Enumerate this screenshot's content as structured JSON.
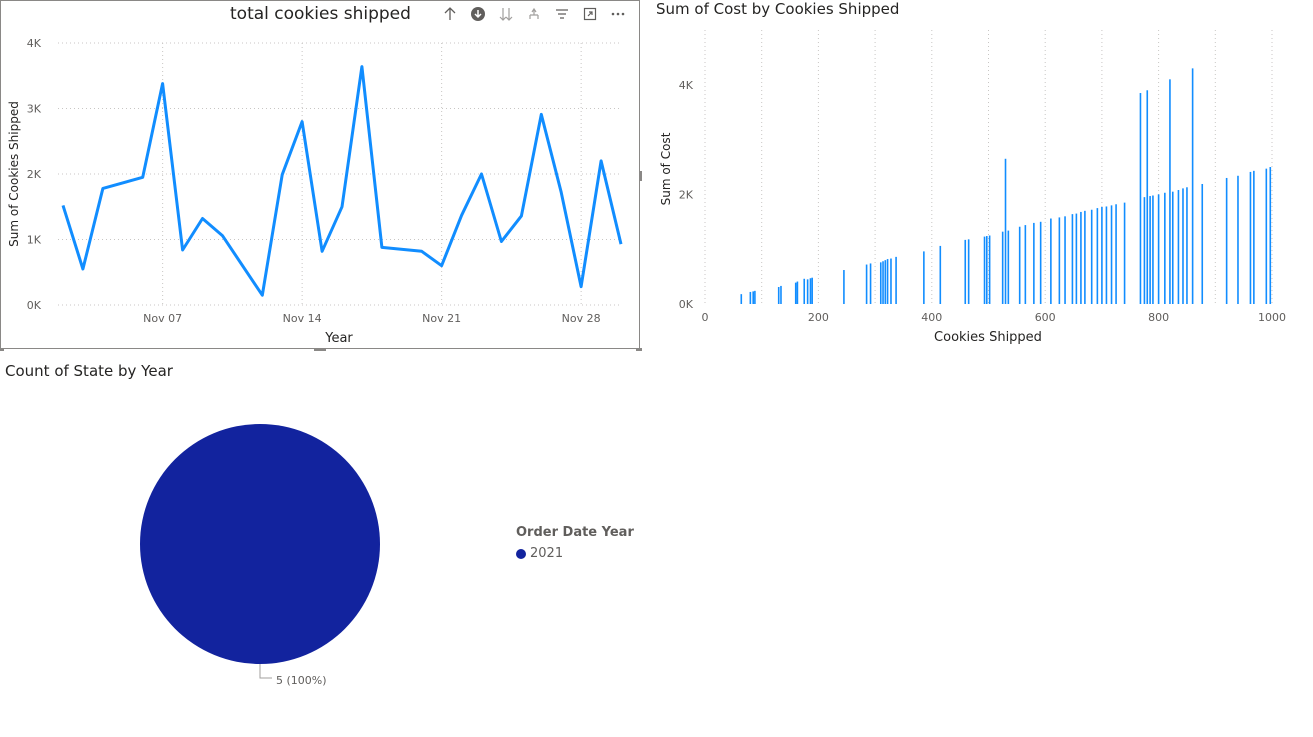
{
  "colors": {
    "line": "#118dff",
    "bar": "#118dff",
    "pie": "#12239e",
    "grid": "#c8c6c4",
    "axis_text": "#605e5c"
  },
  "header_icons": [
    "arrow-up-icon",
    "drill-down-icon",
    "expand-all-icon",
    "drill-hierarchy-icon",
    "filter-icon",
    "focus-mode-icon",
    "more-options-icon"
  ],
  "chart_data": [
    {
      "type": "line",
      "title": "total cookies shipped",
      "xlabel": "Year",
      "ylabel": "Sum of Cookies Shipped",
      "y_ticks": [
        "0K",
        "1K",
        "2K",
        "3K",
        "4K"
      ],
      "ylim": [
        0,
        4000
      ],
      "x_ticks": [
        "Nov 07",
        "Nov 14",
        "Nov 21",
        "Nov 28"
      ],
      "x_tick_values": [
        "2021-11-07",
        "2021-11-14",
        "2021-11-21",
        "2021-11-28"
      ],
      "xlim": [
        "2021-11-02",
        "2021-11-30"
      ],
      "grid": true,
      "series": [
        {
          "x": [
            "2021-11-02",
            "2021-11-03",
            "2021-11-04",
            "2021-11-06",
            "2021-11-07",
            "2021-11-08",
            "2021-11-09",
            "2021-11-10",
            "2021-11-12",
            "2021-11-13",
            "2021-11-14",
            "2021-11-15",
            "2021-11-16",
            "2021-11-17",
            "2021-11-18",
            "2021-11-20",
            "2021-11-21",
            "2021-11-22",
            "2021-11-23",
            "2021-11-24",
            "2021-11-25",
            "2021-11-26",
            "2021-11-27",
            "2021-11-28",
            "2021-11-29",
            "2021-11-30"
          ],
          "values": [
            1520,
            550,
            1780,
            1950,
            3380,
            840,
            1320,
            1060,
            150,
            1990,
            2800,
            820,
            1500,
            3640,
            880,
            820,
            600,
            1370,
            2000,
            970,
            1360,
            2910,
            1720,
            280,
            2200,
            930
          ]
        }
      ]
    },
    {
      "type": "bar",
      "title": "Sum of Cost by Cookies Shipped",
      "xlabel": "Cookies Shipped",
      "ylabel": "Sum of Cost",
      "x_ticks": [
        "0",
        "200",
        "400",
        "600",
        "800",
        "1000"
      ],
      "xlim": [
        0,
        1000
      ],
      "y_ticks": [
        "0K",
        "2K",
        "4K"
      ],
      "ylim": [
        0,
        5000
      ],
      "grid": true,
      "x": [
        64,
        80,
        85,
        88,
        130,
        134,
        160,
        163,
        175,
        181,
        186,
        189,
        245,
        285,
        292,
        310,
        314,
        318,
        322,
        328,
        337,
        386,
        415,
        459,
        465,
        493,
        497,
        502,
        525,
        530,
        535,
        555,
        565,
        580,
        592,
        610,
        625,
        635,
        648,
        655,
        663,
        670,
        682,
        692,
        700,
        708,
        717,
        725,
        740,
        768,
        775,
        780,
        785,
        790,
        800,
        811,
        820,
        825,
        835,
        843,
        850,
        860,
        877,
        920,
        940,
        962,
        968,
        990,
        997
      ],
      "values": [
        180,
        220,
        230,
        240,
        310,
        330,
        390,
        410,
        460,
        450,
        470,
        480,
        620,
        720,
        740,
        760,
        780,
        800,
        820,
        830,
        860,
        960,
        1060,
        1170,
        1180,
        1230,
        1240,
        1250,
        1320,
        2650,
        1340,
        1410,
        1440,
        1480,
        1500,
        1560,
        1580,
        1600,
        1640,
        1650,
        1680,
        1700,
        1720,
        1750,
        1770,
        1780,
        1800,
        1820,
        1850,
        3850,
        1950,
        3900,
        1970,
        1980,
        2000,
        2030,
        4100,
        2050,
        2080,
        2110,
        2130,
        4300,
        2190,
        2300,
        2340,
        2410,
        2430,
        2470,
        2500
      ]
    },
    {
      "type": "pie",
      "title": "Count of State by Year",
      "legend_title": "Order Date Year",
      "legend_position": "right",
      "slices": [
        {
          "label": "2021",
          "value": 5,
          "percent": 100,
          "data_label": "5 (100%)"
        }
      ]
    }
  ]
}
